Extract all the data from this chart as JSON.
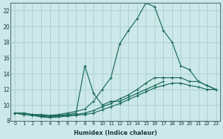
{
  "xlabel": "Humidex (Indice chaleur)",
  "ylabel": "",
  "bg_color": "#cce8e8",
  "grid_color": "#aad0d0",
  "line_color": "#1a6a5a",
  "xlim": [
    -0.5,
    23.5
  ],
  "ylim": [
    8,
    23
  ],
  "xticks": [
    0,
    1,
    2,
    3,
    4,
    5,
    6,
    7,
    8,
    9,
    10,
    11,
    12,
    13,
    14,
    15,
    16,
    17,
    18,
    19,
    20,
    21,
    22,
    23
  ],
  "yticks": [
    8,
    10,
    12,
    14,
    16,
    18,
    20,
    22
  ],
  "line1_x": [
    0,
    1,
    2,
    3,
    4,
    5,
    6,
    7,
    8,
    9,
    10,
    11,
    12,
    13,
    14,
    15,
    16,
    17,
    18,
    19,
    20,
    21,
    22,
    23
  ],
  "line1_y": [
    9.0,
    9.0,
    8.8,
    8.8,
    8.7,
    8.8,
    9.0,
    9.2,
    9.5,
    10.5,
    12.0,
    13.5,
    17.8,
    19.5,
    21.0,
    23.0,
    22.5,
    19.5,
    18.0,
    15.0,
    14.5,
    13.0,
    12.5,
    12.0
  ],
  "line2_x": [
    0,
    1,
    2,
    3,
    4,
    5,
    6,
    7,
    8,
    9,
    10,
    11,
    12,
    13,
    14,
    15,
    16,
    17
  ],
  "line2_y": [
    9.0,
    9.0,
    8.8,
    8.7,
    8.6,
    8.7,
    8.8,
    9.0,
    15.0,
    11.5,
    10.0,
    10.5,
    10.5,
    11.0,
    11.5,
    12.0,
    12.5,
    13.0
  ],
  "line3_x": [
    0,
    1,
    2,
    3,
    4,
    5,
    6,
    7,
    8,
    9,
    10,
    11,
    12,
    13,
    14,
    15,
    16,
    17,
    18,
    19,
    20,
    21,
    22,
    23
  ],
  "line3_y": [
    9.0,
    8.8,
    8.7,
    8.6,
    8.5,
    8.6,
    8.7,
    8.8,
    9.0,
    9.3,
    9.8,
    10.2,
    10.8,
    11.3,
    12.0,
    12.8,
    13.5,
    13.5,
    13.5,
    13.5,
    13.0,
    13.0,
    12.5,
    12.0
  ],
  "line4_x": [
    0,
    1,
    2,
    3,
    4,
    5,
    6,
    7,
    8,
    9,
    10,
    11,
    12,
    13,
    14,
    15,
    16,
    17,
    18,
    19,
    20,
    21,
    22,
    23
  ],
  "line4_y": [
    9.0,
    8.8,
    8.7,
    8.5,
    8.4,
    8.5,
    8.6,
    8.7,
    8.8,
    9.0,
    9.4,
    9.8,
    10.2,
    10.7,
    11.2,
    11.7,
    12.2,
    12.5,
    12.8,
    12.8,
    12.5,
    12.3,
    12.0,
    12.0
  ]
}
